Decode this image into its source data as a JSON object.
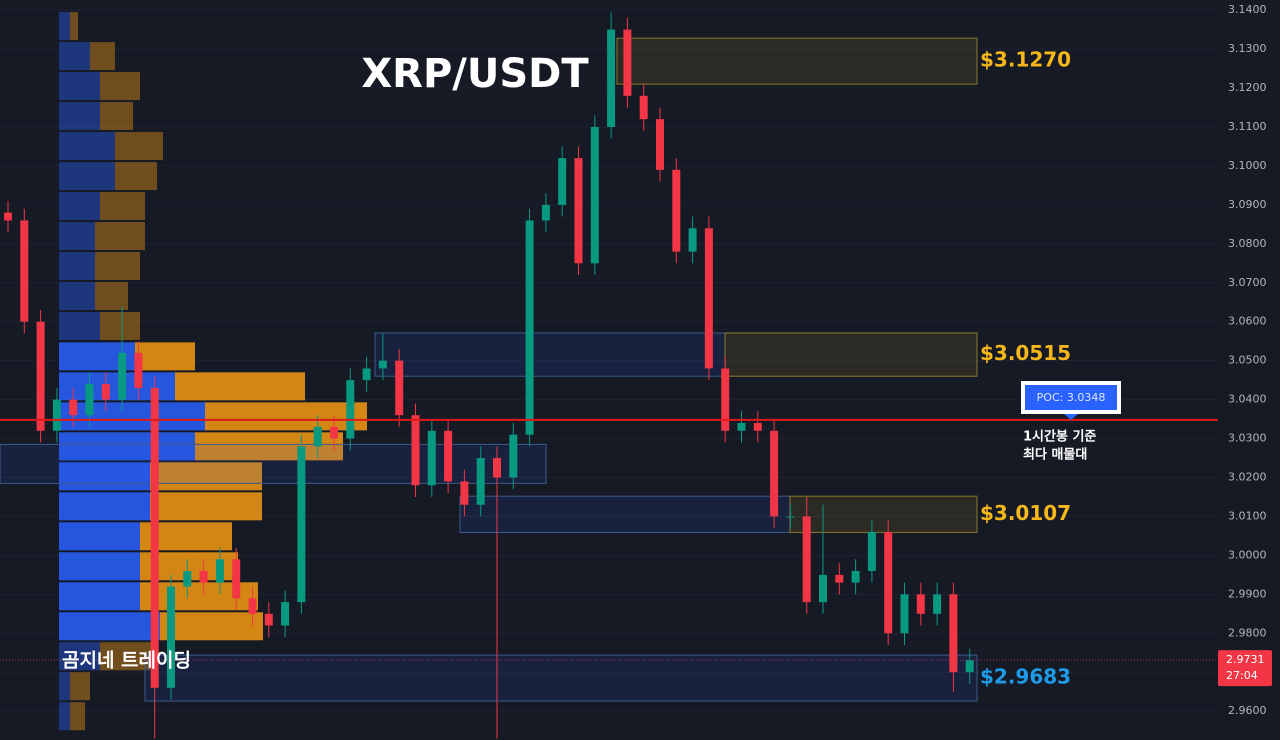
{
  "chart_data": {
    "type": "candlestick",
    "title": "XRP/USDT",
    "watermark": "곰지네 트레이딩",
    "up_color": "#089981",
    "down_color": "#f23645",
    "open": [
      3.088,
      3.086,
      3.06,
      3.032,
      3.04,
      3.036,
      3.044,
      3.04,
      3.052,
      3.043,
      2.966,
      2.992,
      2.996,
      2.993,
      2.999,
      2.989,
      2.985,
      2.982,
      2.988,
      3.028,
      3.033,
      3.03,
      3.045,
      3.048,
      3.05,
      3.036,
      3.018,
      3.032,
      3.019,
      3.013,
      3.025,
      3.02,
      3.031,
      3.086,
      3.09,
      3.102,
      3.075,
      3.11,
      3.135,
      3.118,
      3.112,
      3.099,
      3.078,
      3.084,
      3.048,
      3.032,
      3.034,
      3.032,
      3.01,
      3.01,
      2.988,
      2.995,
      2.993,
      2.996,
      3.006,
      2.98,
      2.99,
      2.985,
      2.99,
      2.97
    ],
    "high": [
      3.091,
      3.089,
      3.063,
      3.043,
      3.043,
      3.047,
      3.047,
      3.064,
      3.055,
      3.046,
      2.995,
      2.999,
      2.999,
      3.002,
      3.002,
      2.992,
      2.988,
      2.991,
      3.031,
      3.036,
      3.036,
      3.048,
      3.051,
      3.057,
      3.053,
      3.039,
      3.035,
      3.035,
      3.022,
      3.028,
      3.028,
      3.034,
      3.089,
      3.093,
      3.105,
      3.105,
      3.113,
      3.1395,
      3.138,
      3.121,
      3.115,
      3.102,
      3.087,
      3.087,
      3.051,
      3.037,
      3.037,
      3.035,
      3.013,
      3.015,
      3.013,
      2.998,
      2.999,
      3.009,
      3.009,
      2.993,
      2.993,
      2.993,
      2.993,
      2.976
    ],
    "low": [
      3.083,
      3.057,
      3.029,
      3.029,
      3.033,
      3.033,
      3.037,
      3.037,
      3.04,
      2.953,
      2.963,
      2.989,
      2.99,
      2.99,
      2.986,
      2.982,
      2.979,
      2.979,
      2.985,
      3.025,
      3.027,
      3.027,
      3.042,
      3.045,
      3.033,
      3.015,
      3.015,
      3.016,
      3.01,
      3.01,
      2.953,
      3.017,
      3.028,
      3.083,
      3.087,
      3.072,
      3.072,
      3.107,
      3.115,
      3.109,
      3.096,
      3.075,
      3.075,
      3.045,
      3.029,
      3.029,
      3.029,
      3.007,
      3.007,
      2.985,
      2.985,
      2.99,
      2.99,
      2.993,
      2.977,
      2.977,
      2.982,
      2.982,
      2.965,
      2.967
    ],
    "close": [
      3.086,
      3.06,
      3.032,
      3.04,
      3.036,
      3.044,
      3.04,
      3.052,
      3.043,
      2.966,
      2.992,
      2.996,
      2.993,
      2.999,
      2.989,
      2.985,
      2.982,
      2.988,
      3.028,
      3.033,
      3.03,
      3.045,
      3.048,
      3.05,
      3.036,
      3.018,
      3.032,
      3.019,
      3.013,
      3.025,
      3.02,
      3.031,
      3.086,
      3.09,
      3.102,
      3.075,
      3.11,
      3.135,
      3.118,
      3.112,
      3.099,
      3.078,
      3.084,
      3.048,
      3.032,
      3.034,
      3.032,
      3.01,
      3.01,
      2.988,
      2.995,
      2.993,
      2.996,
      3.006,
      2.98,
      2.99,
      2.985,
      2.99,
      2.97,
      2.9731
    ],
    "ylim": [
      2.9526,
      3.1426
    ],
    "yticks": [
      {
        "value": 2.96,
        "label": "2.9600"
      },
      {
        "value": 2.97,
        "label": "2.9700"
      },
      {
        "value": 2.98,
        "label": "2.9800"
      },
      {
        "value": 2.99,
        "label": "2.9900"
      },
      {
        "value": 3.0,
        "label": "3.0000"
      },
      {
        "value": 3.01,
        "label": "3.0100"
      },
      {
        "value": 3.02,
        "label": "3.0200"
      },
      {
        "value": 3.03,
        "label": "3.0300"
      },
      {
        "value": 3.04,
        "label": "3.0400"
      },
      {
        "value": 3.05,
        "label": "3.0500"
      },
      {
        "value": 3.06,
        "label": "3.0600"
      },
      {
        "value": 3.07,
        "label": "3.0700"
      },
      {
        "value": 3.08,
        "label": "3.0800"
      },
      {
        "value": 3.09,
        "label": "3.0900"
      },
      {
        "value": 3.1,
        "label": "3.1000"
      },
      {
        "value": 3.11,
        "label": "3.1100"
      },
      {
        "value": 3.12,
        "label": "3.1200"
      },
      {
        "value": 3.13,
        "label": "3.1300"
      },
      {
        "value": 3.14,
        "label": "3.1400"
      }
    ],
    "grid": true,
    "volume_profile": {
      "bins": [
        3.1359,
        3.1282,
        3.1205,
        3.1128,
        3.1051,
        3.0974,
        3.0897,
        3.082,
        3.0743,
        3.0666,
        3.0589,
        3.0511,
        3.0434,
        3.0357,
        3.028,
        3.0203,
        3.0126,
        3.0049,
        2.9972,
        2.9895,
        2.9818,
        2.9741,
        2.9664,
        2.9587
      ],
      "buy": [
        11,
        31,
        41,
        41,
        56,
        56,
        41,
        36,
        36,
        36,
        41,
        76,
        116,
        146,
        136,
        91,
        91,
        81,
        81,
        81,
        101,
        41,
        11,
        11
      ],
      "sell": [
        8,
        25,
        40,
        33,
        48,
        42,
        45,
        50,
        45,
        33,
        40,
        60,
        130,
        162,
        148,
        112,
        112,
        92,
        98,
        118,
        103,
        55,
        20,
        15
      ],
      "buy_color": "#2962ff",
      "sell_color": "#f59a12"
    },
    "zones": [
      {
        "top": 3.1328,
        "bottom": 3.121,
        "label": "$3.1270",
        "color": "#f5b71a"
      },
      {
        "top": 3.0571,
        "bottom": 3.046,
        "label": "$3.0515",
        "color": "#f5b71a"
      },
      {
        "top": 3.0152,
        "bottom": 3.0059,
        "label": "$3.0107",
        "color": "#f5b71a"
      },
      {
        "top": 2.9744,
        "bottom": 2.9626,
        "label": "$2.9683",
        "color": "#1e9be8"
      },
      {
        "top": 3.0285,
        "bottom": 3.0185
      }
    ],
    "poc": {
      "value": 3.0348,
      "label": "POC: 3.0348",
      "note": [
        "1시간봉 기준",
        "최다 매물대"
      ],
      "color": "#e01818"
    },
    "last_price": {
      "value": 2.9731,
      "label": "2.9731",
      "countdown": "27:04"
    }
  }
}
